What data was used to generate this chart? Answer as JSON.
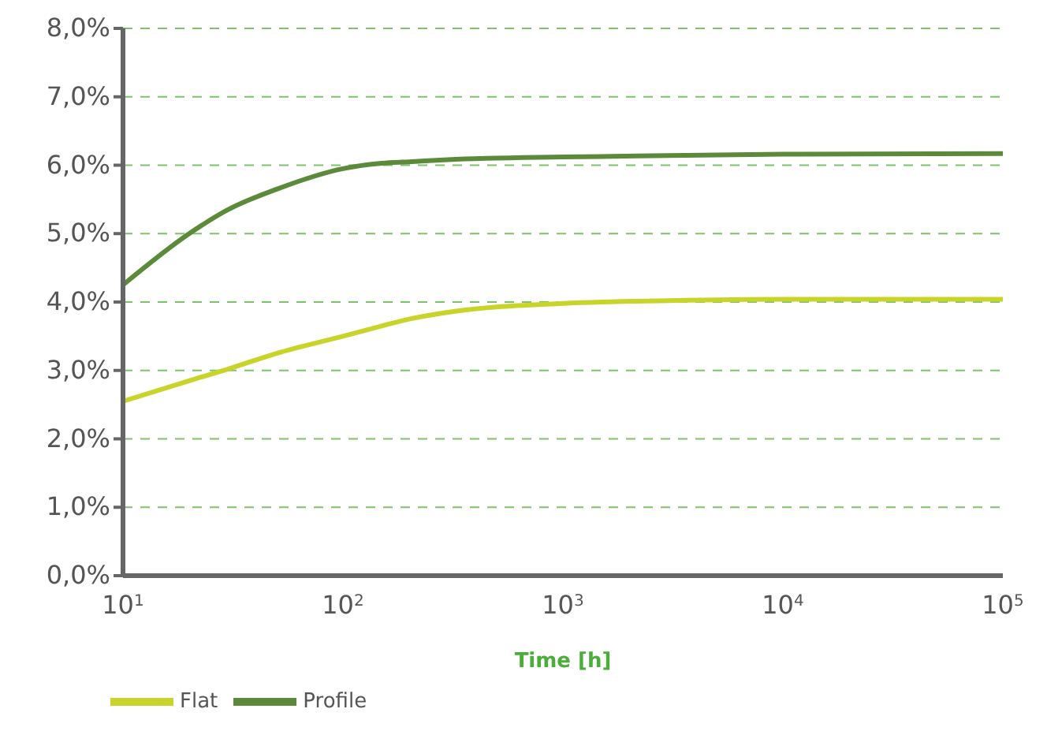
{
  "chart_data": {
    "type": "line",
    "xlabel": "Time [h]",
    "log": "x",
    "grid": "y",
    "legend": "bottom left",
    "marker": "none",
    "line_style": "solid",
    "xlim": [
      10,
      100000
    ],
    "xticks": [
      {
        "value": 10,
        "label": "10$^{1}$"
      },
      {
        "value": 100,
        "label": "10$^{2}$"
      },
      {
        "value": 1000,
        "label": "10$^{3}$"
      },
      {
        "value": 10000,
        "label": "10$^{4}$"
      },
      {
        "value": 100000,
        "label": "10$^{5}$"
      }
    ],
    "ylim": [
      0,
      8
    ],
    "yticks": [
      {
        "value": 0,
        "label": "0,0%"
      },
      {
        "value": 1,
        "label": "1,0%"
      },
      {
        "value": 2,
        "label": "2,0%"
      },
      {
        "value": 3,
        "label": "3,0%"
      },
      {
        "value": 4,
        "label": "4,0%"
      },
      {
        "value": 5,
        "label": "5,0%"
      },
      {
        "value": 6,
        "label": "6,0%"
      },
      {
        "value": 7,
        "label": "7,0%"
      },
      {
        "value": 8,
        "label": "8,0%"
      }
    ],
    "x": [
      10,
      20,
      30,
      50,
      100,
      150,
      200,
      300,
      1000,
      3000,
      10000,
      100000
    ],
    "series": [
      {
        "name": "Profile",
        "color": "#5a8a3a",
        "values": [
          4.25,
          5.0,
          5.35,
          5.65,
          5.95,
          6.03,
          6.05,
          6.08,
          6.12,
          6.14,
          6.16,
          6.17
        ]
      },
      {
        "name": "Flat",
        "color": "#c8d42a",
        "values": [
          2.55,
          2.85,
          3.02,
          3.25,
          3.5,
          3.65,
          3.75,
          3.85,
          3.98,
          4.02,
          4.04,
          4.04
        ]
      }
    ]
  }
}
